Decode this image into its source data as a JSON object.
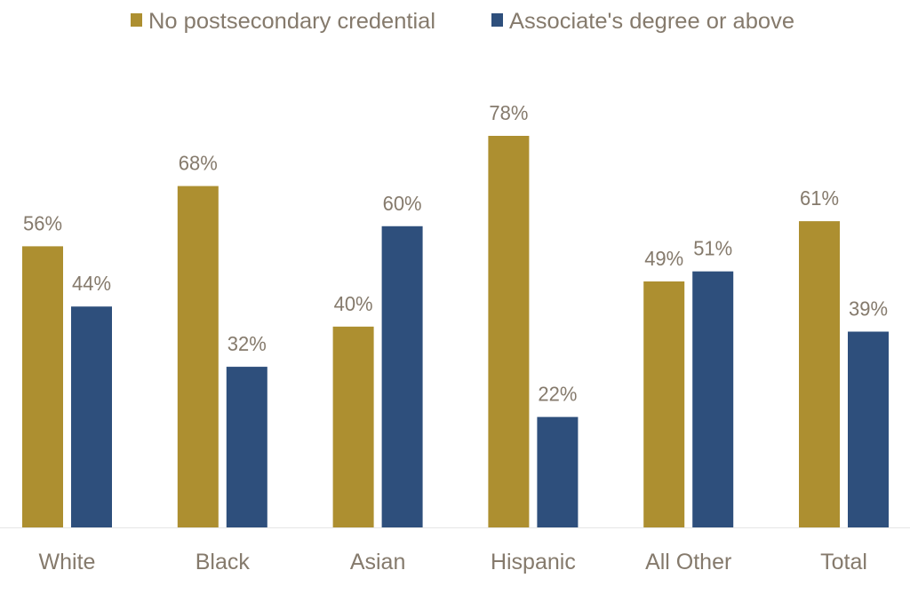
{
  "chart_data": {
    "type": "bar",
    "title": "",
    "xlabel": "",
    "ylabel": "",
    "ylim": [
      0,
      80
    ],
    "grid": false,
    "legend_placement": "top-center",
    "categories": [
      "White",
      "Black",
      "Asian",
      "Hispanic",
      "All Other",
      "Total"
    ],
    "series": [
      {
        "name": "No postsecondary credential",
        "color": "#ad8f30",
        "values": [
          56,
          68,
          40,
          78,
          49,
          61
        ]
      },
      {
        "name": "Associate's degree or above",
        "color": "#2e4f7c",
        "values": [
          44,
          32,
          60,
          22,
          51,
          39
        ]
      }
    ],
    "value_suffix": "%"
  }
}
